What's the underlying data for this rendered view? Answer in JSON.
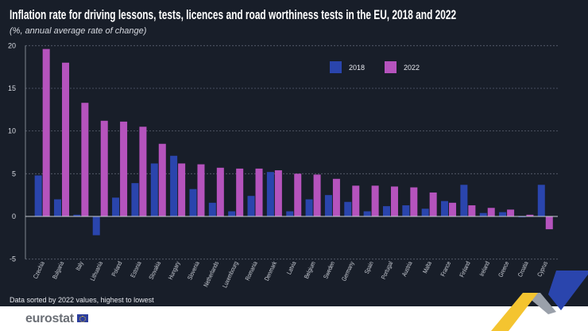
{
  "chart_data": {
    "type": "bar",
    "title": "Inflation rate for driving lessons, tests, licences and road worthiness tests in the EU, 2018 and 2022",
    "subtitle": "(%, annual average rate of change)",
    "xlabel": "",
    "ylabel": "",
    "ylim": [
      -5,
      20
    ],
    "yticks": [
      -5,
      0,
      5,
      10,
      15,
      20
    ],
    "grid": true,
    "legend_position": "top-center",
    "categories": [
      "Czechia",
      "Bulgaria",
      "Italy",
      "Lithuania",
      "Poland",
      "Estonia",
      "Slovakia",
      "Hungary",
      "Slovenia",
      "Netherlands",
      "Luxembourg",
      "Romania",
      "Denmark",
      "Latvia",
      "Belgium",
      "Sweden",
      "Germany",
      "Spain",
      "Portugal",
      "Austria",
      "Malta",
      "France",
      "Finland",
      "Ireland",
      "Greece",
      "Croatia",
      "Cyprus"
    ],
    "series": [
      {
        "name": "2018",
        "color": "#2a45ad",
        "values": [
          4.8,
          2.0,
          0.2,
          -2.2,
          2.2,
          3.9,
          6.2,
          7.1,
          3.2,
          1.6,
          0.6,
          2.4,
          5.2,
          0.6,
          2.0,
          2.5,
          1.7,
          0.6,
          1.2,
          1.3,
          0.9,
          1.8,
          3.7,
          0.4,
          0.5,
          -0.1,
          3.7
        ]
      },
      {
        "name": "2022",
        "color": "#b553bd",
        "values": [
          19.6,
          18.0,
          13.3,
          11.2,
          11.1,
          10.5,
          8.5,
          6.2,
          6.1,
          5.7,
          5.6,
          5.6,
          5.4,
          5.0,
          4.9,
          4.4,
          3.6,
          3.6,
          3.5,
          3.4,
          2.8,
          1.6,
          1.3,
          1.0,
          0.8,
          0.2,
          -1.5
        ]
      }
    ]
  },
  "footer": {
    "note": "Data sorted by 2022 values, highest to lowest",
    "logo": "eurostat"
  }
}
